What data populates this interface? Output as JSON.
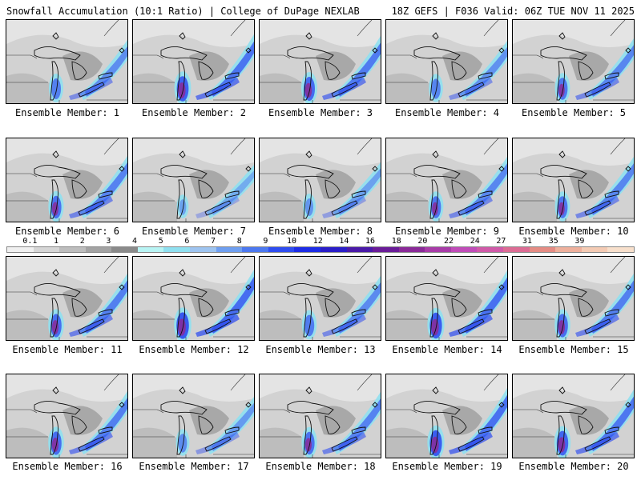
{
  "header": {
    "left_title": "Snowfall Accumulation (10:1 Ratio) | College of DuPage NEXLAB",
    "right_title": "18Z GEFS | F036 Valid: 06Z TUE NOV 11 2025"
  },
  "legend": {
    "labels": [
      "0.1",
      "1",
      "2",
      "3",
      "4",
      "5",
      "6",
      "7",
      "8",
      "9",
      "10",
      "12",
      "14",
      "16",
      "18",
      "20",
      "22",
      "24",
      "27",
      "31",
      "35",
      "39"
    ],
    "colors": [
      "#f0f0f0",
      "#d6d6d6",
      "#bdbdbd",
      "#a3a3a3",
      "#8a8a8a",
      "#b8f4f4",
      "#8fe0f0",
      "#9ec4f0",
      "#6f9ff0",
      "#4c78f0",
      "#2f4df0",
      "#1e2de6",
      "#2a1ec8",
      "#4a1aa8",
      "#6a1c98",
      "#8a2a98",
      "#a83ca8",
      "#c04cb8",
      "#d05aa8",
      "#dc6c94",
      "#e58c84",
      "#eeb09c",
      "#f4cbb4",
      "#f8e0cc"
    ]
  },
  "members": [
    {
      "label": "Ensemble Member: 1",
      "intensity": 0.5
    },
    {
      "label": "Ensemble Member: 2",
      "intensity": 0.85
    },
    {
      "label": "Ensemble Member: 3",
      "intensity": 0.75
    },
    {
      "label": "Ensemble Member: 4",
      "intensity": 0.45
    },
    {
      "label": "Ensemble Member: 5",
      "intensity": 0.6
    },
    {
      "label": "Ensemble Member: 6",
      "intensity": 0.65
    },
    {
      "label": "Ensemble Member: 7",
      "intensity": 0.1
    },
    {
      "label": "Ensemble Member: 8",
      "intensity": 0.25
    },
    {
      "label": "Ensemble Member: 9",
      "intensity": 0.6
    },
    {
      "label": "Ensemble Member: 10",
      "intensity": 0.6
    },
    {
      "label": "Ensemble Member: 11",
      "intensity": 0.7
    },
    {
      "label": "Ensemble Member: 12",
      "intensity": 0.95
    },
    {
      "label": "Ensemble Member: 13",
      "intensity": 0.55
    },
    {
      "label": "Ensemble Member: 14",
      "intensity": 0.9
    },
    {
      "label": "Ensemble Member: 15",
      "intensity": 0.7
    },
    {
      "label": "Ensemble Member: 16",
      "intensity": 0.7
    },
    {
      "label": "Ensemble Member: 17",
      "intensity": 0.35
    },
    {
      "label": "Ensemble Member: 18",
      "intensity": 0.65
    },
    {
      "label": "Ensemble Member: 19",
      "intensity": 0.9
    },
    {
      "label": "Ensemble Member: 20",
      "intensity": 0.8
    }
  ]
}
